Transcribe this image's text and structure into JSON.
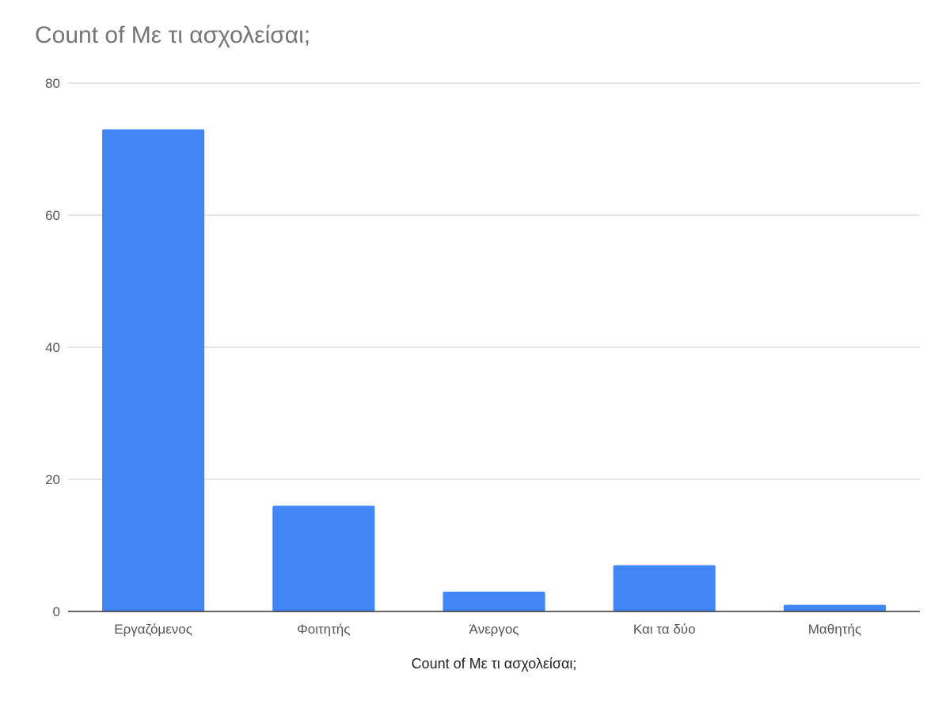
{
  "chart_data": {
    "type": "bar",
    "title": "Count of Με τι ασχολείσαι;",
    "xlabel": "Count of Με τι ασχολείσαι;",
    "ylabel": "",
    "categories": [
      "Εργαζόμενος",
      "Φοιτητής",
      "Άνεργος",
      "Και τα δύο",
      "Μαθητής"
    ],
    "values": [
      73,
      16,
      3,
      7,
      1
    ],
    "ylim": [
      0,
      80
    ],
    "yticks": [
      0,
      20,
      40,
      60,
      80
    ],
    "grid": true,
    "legend": "none",
    "colors": {
      "bar": "#4285f4",
      "grid": "#cccccc",
      "axis": "#333333"
    }
  }
}
